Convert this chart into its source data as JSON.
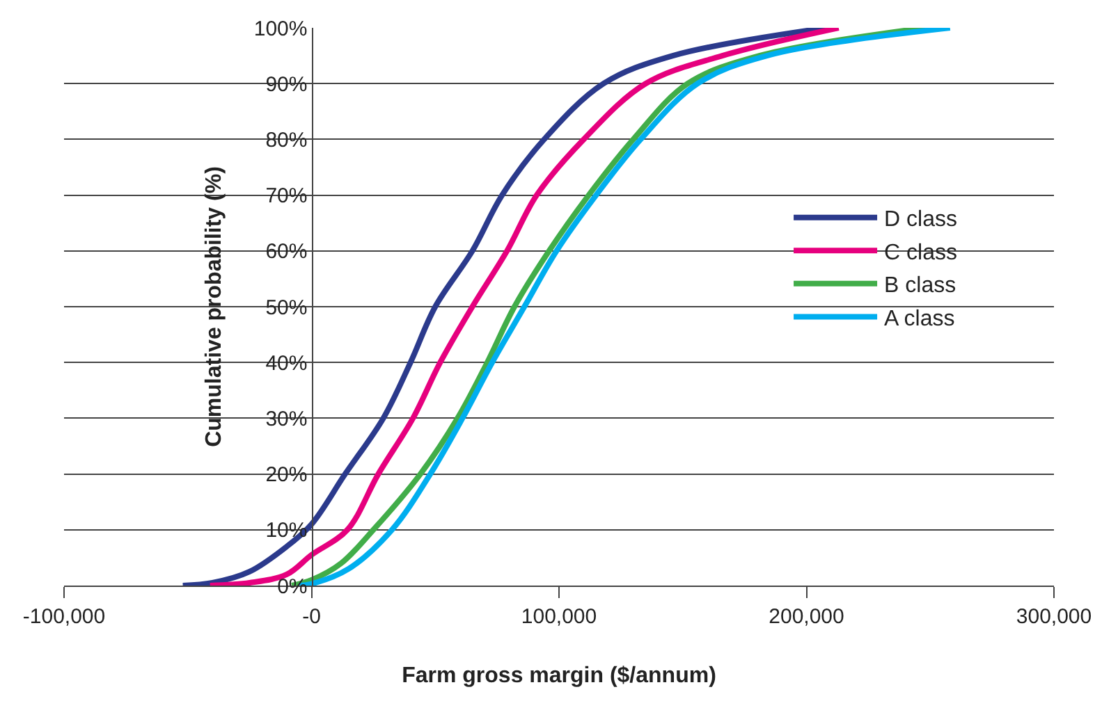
{
  "chart_data": {
    "type": "line",
    "xlabel": "Farm gross margin ($/annum)",
    "ylabel": "Cumulative probability (%)",
    "xlim": [
      -100000,
      300000
    ],
    "xticks": [
      {
        "value": -100000,
        "label": "-100,000"
      },
      {
        "value": 0,
        "label": "-0"
      },
      {
        "value": 100000,
        "label": "100,000"
      },
      {
        "value": 200000,
        "label": "200,000"
      },
      {
        "value": 300000,
        "label": "300,000"
      }
    ],
    "ylim": [
      0,
      100
    ],
    "yticks": [
      {
        "value": 0,
        "label": "0%"
      },
      {
        "value": 10,
        "label": "10%"
      },
      {
        "value": 20,
        "label": "20%"
      },
      {
        "value": 30,
        "label": "30%"
      },
      {
        "value": 40,
        "label": "40%"
      },
      {
        "value": 50,
        "label": "50%"
      },
      {
        "value": 60,
        "label": "60%"
      },
      {
        "value": 70,
        "label": "70%"
      },
      {
        "value": 80,
        "label": "80%"
      },
      {
        "value": 90,
        "label": "90%"
      },
      {
        "value": 100,
        "label": "100%"
      }
    ],
    "grid": "y",
    "legend": "right",
    "marker": "none",
    "line_style": "solid",
    "series": [
      {
        "name": "D class",
        "color": "#2b3a8c",
        "x": [
          -52000,
          -40000,
          -25000,
          -10000,
          0,
          13600,
          29000,
          40000,
          50000,
          65000,
          77000,
          94000,
          118000,
          146000,
          208000
        ],
        "values": [
          0,
          0.5,
          2.5,
          7,
          11,
          20,
          30,
          40,
          50,
          60,
          70,
          80,
          90,
          95,
          100
        ]
      },
      {
        "name": "C class",
        "color": "#e6007e",
        "x": [
          -41000,
          -25000,
          -10000,
          0,
          14500,
          27000,
          41000,
          52000,
          65000,
          79000,
          91000,
          110000,
          135000,
          166000,
          213000
        ],
        "values": [
          0,
          0.5,
          2,
          5.5,
          10,
          20,
          30,
          40,
          50,
          60,
          70,
          80,
          90,
          95,
          100
        ]
      },
      {
        "name": "B class",
        "color": "#41ad49",
        "x": [
          -8000,
          0,
          12000,
          25000,
          44000,
          59000,
          71000,
          82000,
          96000,
          112000,
          130000,
          152000,
          181000,
          248000
        ],
        "values": [
          0,
          1,
          4,
          10,
          20,
          30,
          40,
          50,
          60,
          70,
          80,
          90,
          95,
          100
        ]
      },
      {
        "name": "A class",
        "color": "#00aeef",
        "x": [
          -5000,
          0,
          15000,
          32500,
          48000,
          61000,
          73000,
          86000,
          99000,
          115000,
          133000,
          156000,
          184000,
          258000
        ],
        "values": [
          0,
          0.3,
          3,
          10,
          20,
          30,
          40,
          50,
          60,
          70,
          80,
          90,
          95,
          100
        ]
      }
    ]
  }
}
